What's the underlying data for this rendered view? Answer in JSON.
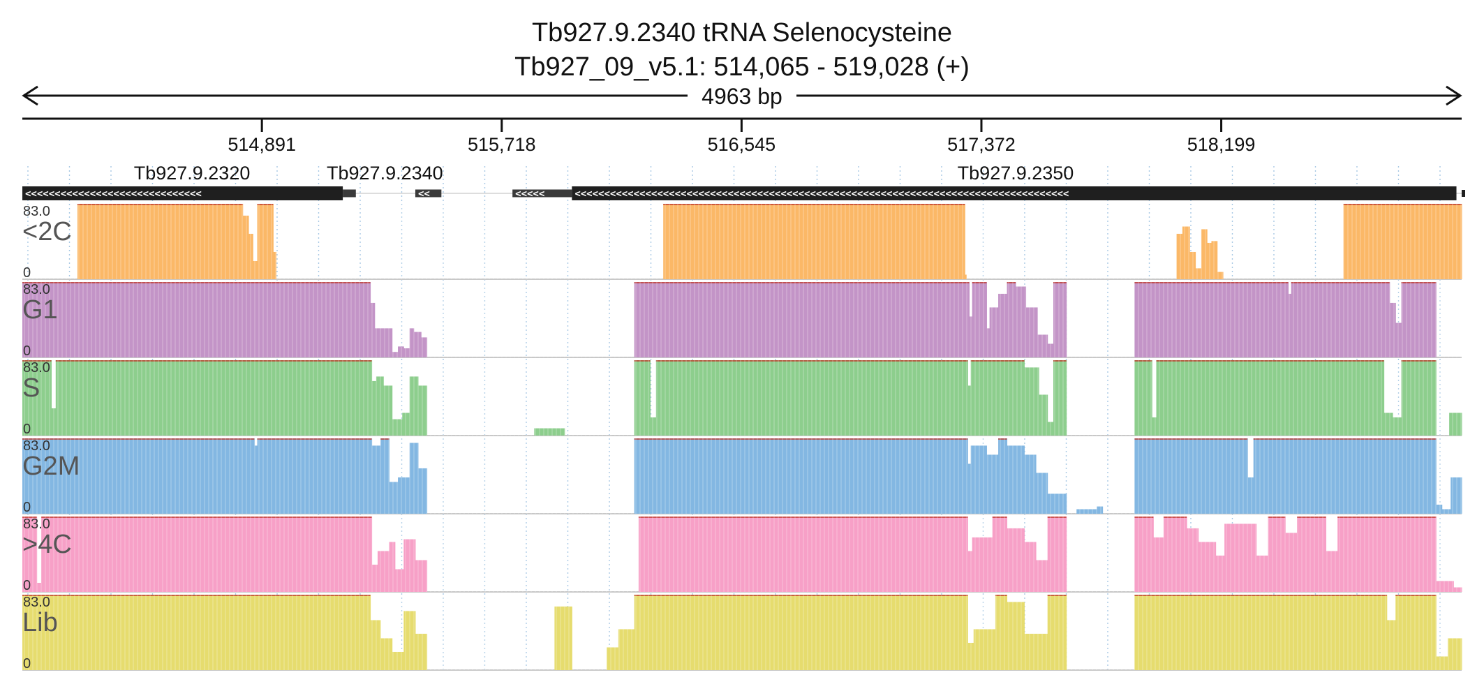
{
  "chart_data": {
    "type": "area",
    "title_line1": "Tb927.9.2340  tRNA Selenocysteine",
    "title_line2": "Tb927_09_v5.1: 514,065 - 519,028 (+)",
    "span_label": "4963 bp",
    "xlim": [
      514065,
      519028
    ],
    "ticks": [
      {
        "value": 514891,
        "label": "514,891"
      },
      {
        "value": 515718,
        "label": "515,718"
      },
      {
        "value": 516545,
        "label": "516,545"
      },
      {
        "value": 517372,
        "label": "517,372"
      },
      {
        "value": 518199,
        "label": "518,199"
      }
    ],
    "genes": [
      {
        "name": "Tb927.9.2320",
        "start": 514065,
        "end": 515170,
        "strand": "-",
        "label_at": 514650
      },
      {
        "name": "",
        "start": 515170,
        "end": 515215,
        "strand": "-",
        "label_at": null
      },
      {
        "name": "Tb927.9.2340",
        "start": 515420,
        "end": 515510,
        "strand": "-",
        "label_at": 515315
      },
      {
        "name": "",
        "start": 515755,
        "end": 515960,
        "strand": "-",
        "label_at": null
      },
      {
        "name": "Tb927.9.2350",
        "start": 515960,
        "end": 519010,
        "strand": "-",
        "label_at": 517490
      }
    ],
    "ylim": [
      0,
      83.0
    ],
    "ymax_label": "83.0",
    "ymin_label": "0",
    "tracks": [
      {
        "name": "<2C",
        "color": "#fbb867",
        "edge": "#f59c2f",
        "segments": [
          [
            514255,
            514825,
            83.0
          ],
          [
            514825,
            514845,
            70.0
          ],
          [
            514845,
            514860,
            50.0
          ],
          [
            514860,
            514875,
            20.0
          ],
          [
            514875,
            514930,
            83.0
          ],
          [
            514930,
            514940,
            30.0
          ],
          [
            516275,
            517315,
            83.0
          ],
          [
            517315,
            517320,
            5.0
          ],
          [
            518045,
            518065,
            50.0
          ],
          [
            518065,
            518090,
            58.0
          ],
          [
            518090,
            518110,
            30.0
          ],
          [
            518110,
            518130,
            12.0
          ],
          [
            518130,
            518150,
            55.0
          ],
          [
            518150,
            518165,
            40.0
          ],
          [
            518165,
            518185,
            42.0
          ],
          [
            518185,
            518205,
            8.0
          ],
          [
            518620,
            519035,
            83.0
          ]
        ]
      },
      {
        "name": "G1",
        "color": "#c394c7",
        "edge": "#a566ab",
        "segments": [
          [
            514065,
            515265,
            83.0
          ],
          [
            515265,
            515280,
            60.0
          ],
          [
            515280,
            515340,
            32.0
          ],
          [
            515340,
            515360,
            6.0
          ],
          [
            515360,
            515380,
            12.0
          ],
          [
            515380,
            515400,
            10.0
          ],
          [
            515400,
            515415,
            32.0
          ],
          [
            515415,
            515440,
            28.0
          ],
          [
            515440,
            515460,
            22.0
          ],
          [
            516175,
            517330,
            83.0
          ],
          [
            517330,
            517340,
            45.0
          ],
          [
            517340,
            517390,
            83.0
          ],
          [
            517390,
            517400,
            32.0
          ],
          [
            517400,
            517430,
            55.0
          ],
          [
            517430,
            517460,
            70.0
          ],
          [
            517460,
            517490,
            83.0
          ],
          [
            517490,
            517525,
            78.0
          ],
          [
            517525,
            517565,
            55.0
          ],
          [
            517565,
            517600,
            25.0
          ],
          [
            517600,
            517620,
            15.0
          ],
          [
            517620,
            517665,
            83.0
          ],
          [
            517900,
            518430,
            83.0
          ],
          [
            518430,
            518440,
            70.0
          ],
          [
            518440,
            518780,
            83.0
          ],
          [
            518780,
            518800,
            60.0
          ],
          [
            518800,
            518820,
            38.0
          ],
          [
            518820,
            518940,
            83.0
          ]
        ]
      },
      {
        "name": "S",
        "color": "#8dce8d",
        "edge": "#5ab45a",
        "segments": [
          [
            514065,
            514165,
            83.0
          ],
          [
            514165,
            514180,
            30.0
          ],
          [
            514180,
            515270,
            83.0
          ],
          [
            515270,
            515285,
            60.0
          ],
          [
            515285,
            515310,
            65.0
          ],
          [
            515310,
            515340,
            55.0
          ],
          [
            515340,
            515375,
            18.0
          ],
          [
            515375,
            515400,
            25.0
          ],
          [
            515400,
            515430,
            65.0
          ],
          [
            515430,
            515460,
            55.0
          ],
          [
            515830,
            515935,
            8.0
          ],
          [
            516175,
            516230,
            83.0
          ],
          [
            516230,
            516250,
            20.0
          ],
          [
            516250,
            517325,
            83.0
          ],
          [
            517325,
            517335,
            55.0
          ],
          [
            517335,
            517390,
            83.0
          ],
          [
            517390,
            517520,
            83.0
          ],
          [
            517520,
            517570,
            75.0
          ],
          [
            517570,
            517600,
            45.0
          ],
          [
            517600,
            517620,
            15.0
          ],
          [
            517620,
            517665,
            83.0
          ],
          [
            517900,
            517960,
            83.0
          ],
          [
            517960,
            517975,
            20.0
          ],
          [
            517975,
            518760,
            83.0
          ],
          [
            518760,
            518790,
            25.0
          ],
          [
            518790,
            518820,
            20.0
          ],
          [
            518820,
            518940,
            83.0
          ],
          [
            518985,
            519035,
            25.0
          ]
        ]
      },
      {
        "name": "G2M",
        "color": "#83b7e2",
        "edge": "#4b95d1",
        "segments": [
          [
            514065,
            514865,
            83.0
          ],
          [
            514865,
            514875,
            75.0
          ],
          [
            514875,
            515270,
            83.0
          ],
          [
            515270,
            515300,
            75.0
          ],
          [
            515300,
            515330,
            83.0
          ],
          [
            515330,
            515360,
            35.0
          ],
          [
            515360,
            515400,
            40.0
          ],
          [
            515400,
            515430,
            78.0
          ],
          [
            515430,
            515460,
            50.0
          ],
          [
            516175,
            517325,
            83.0
          ],
          [
            517325,
            517335,
            55.0
          ],
          [
            517335,
            517390,
            75.0
          ],
          [
            517390,
            517430,
            65.0
          ],
          [
            517430,
            517460,
            83.0
          ],
          [
            517460,
            517520,
            75.0
          ],
          [
            517520,
            517560,
            65.0
          ],
          [
            517560,
            517600,
            45.0
          ],
          [
            517600,
            517665,
            22.0
          ],
          [
            517700,
            517770,
            5.0
          ],
          [
            517770,
            517790,
            8.0
          ],
          [
            517900,
            518290,
            83.0
          ],
          [
            518290,
            518310,
            40.0
          ],
          [
            518310,
            518940,
            83.0
          ],
          [
            518940,
            518960,
            10.0
          ],
          [
            518960,
            518990,
            5.0
          ],
          [
            518990,
            519035,
            40.0
          ]
        ]
      },
      {
        "name": ">4C",
        "color": "#f7a0c7",
        "edge": "#e8689d",
        "segments": [
          [
            514065,
            514115,
            83.0
          ],
          [
            514115,
            514130,
            10.0
          ],
          [
            514130,
            515270,
            83.0
          ],
          [
            515270,
            515290,
            30.0
          ],
          [
            515290,
            515330,
            45.0
          ],
          [
            515330,
            515350,
            55.0
          ],
          [
            515350,
            515380,
            25.0
          ],
          [
            515380,
            515420,
            58.0
          ],
          [
            515420,
            515460,
            35.0
          ],
          [
            516190,
            517325,
            83.0
          ],
          [
            517325,
            517340,
            45.0
          ],
          [
            517340,
            517410,
            60.0
          ],
          [
            517410,
            517460,
            83.0
          ],
          [
            517460,
            517520,
            70.0
          ],
          [
            517520,
            517560,
            55.0
          ],
          [
            517560,
            517600,
            35.0
          ],
          [
            517600,
            517665,
            83.0
          ],
          [
            517900,
            517965,
            83.0
          ],
          [
            517965,
            518000,
            60.0
          ],
          [
            518000,
            518080,
            83.0
          ],
          [
            518080,
            518120,
            70.0
          ],
          [
            518120,
            518180,
            55.0
          ],
          [
            518180,
            518210,
            40.0
          ],
          [
            518210,
            518320,
            75.0
          ],
          [
            518320,
            518360,
            40.0
          ],
          [
            518360,
            518420,
            83.0
          ],
          [
            518420,
            518460,
            65.0
          ],
          [
            518460,
            518560,
            83.0
          ],
          [
            518560,
            518600,
            45.0
          ],
          [
            518600,
            518940,
            83.0
          ],
          [
            518940,
            519000,
            12.0
          ],
          [
            519000,
            519035,
            5.0
          ]
        ]
      },
      {
        "name": "Lib",
        "color": "#e6dc6e",
        "edge": "#cfc23a",
        "segments": [
          [
            514065,
            515265,
            83.0
          ],
          [
            515265,
            515300,
            55.0
          ],
          [
            515300,
            515340,
            35.0
          ],
          [
            515340,
            515380,
            20.0
          ],
          [
            515380,
            515420,
            65.0
          ],
          [
            515420,
            515460,
            40.0
          ],
          [
            515900,
            515960,
            70.0
          ],
          [
            516080,
            516120,
            25.0
          ],
          [
            516120,
            516175,
            45.0
          ],
          [
            516175,
            517325,
            83.0
          ],
          [
            517325,
            517345,
            30.0
          ],
          [
            517345,
            517420,
            45.0
          ],
          [
            517420,
            517460,
            83.0
          ],
          [
            517460,
            517520,
            75.0
          ],
          [
            517520,
            517600,
            40.0
          ],
          [
            517600,
            517665,
            83.0
          ],
          [
            517900,
            518770,
            83.0
          ],
          [
            518770,
            518800,
            55.0
          ],
          [
            518800,
            518940,
            83.0
          ],
          [
            518940,
            518980,
            15.0
          ],
          [
            518980,
            519035,
            35.0
          ]
        ]
      }
    ]
  }
}
